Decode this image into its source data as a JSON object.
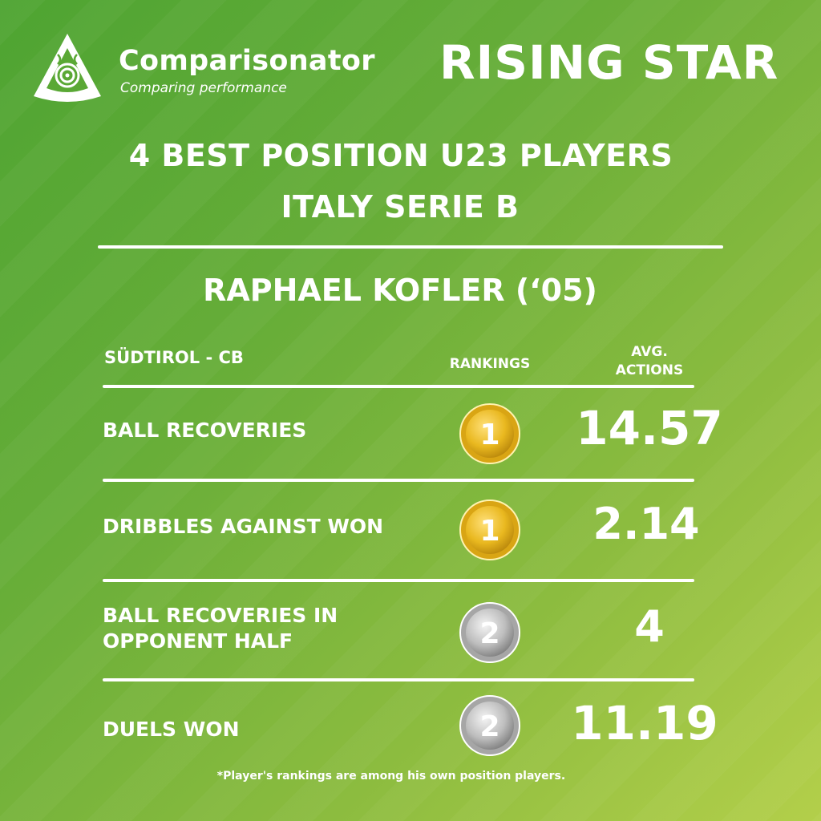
{
  "brand": {
    "name": "Comparisonator",
    "tagline": "Comparing performance",
    "logo_icon": "triangle-swirl-logo"
  },
  "badge_title": "RISING STAR",
  "headline": {
    "line1": "4 BEST POSITION U23 PLAYERS",
    "line2": "ITALY SERIE B"
  },
  "player": {
    "name": "RAPHAEL KOFLER (‘05)",
    "club_position": "SÜDTIROL - CB"
  },
  "columns": {
    "rankings": "RANKINGS",
    "avg_actions_line1": "AVG.",
    "avg_actions_line2": "ACTIONS"
  },
  "stats": [
    {
      "label_line1": "BALL RECOVERIES",
      "label_line2": "",
      "rank": "1",
      "medal": "gold",
      "value": "14.57"
    },
    {
      "label_line1": "DRIBBLES AGAINST WON",
      "label_line2": "",
      "rank": "1",
      "medal": "gold",
      "value": "2.14"
    },
    {
      "label_line1": "BALL RECOVERIES IN",
      "label_line2": "OPPONENT HALF",
      "rank": "2",
      "medal": "silver",
      "value": "4"
    },
    {
      "label_line1": "DUELS WON",
      "label_line2": "",
      "rank": "2",
      "medal": "silver",
      "value": "11.19"
    }
  ],
  "footnote": "*Player's rankings are among his own position players.",
  "colors": {
    "background_start": "#4ea432",
    "background_end": "#b3cf4a",
    "text": "#ffffff",
    "gold": "#e9b81f",
    "silver": "#bdbdbd"
  }
}
